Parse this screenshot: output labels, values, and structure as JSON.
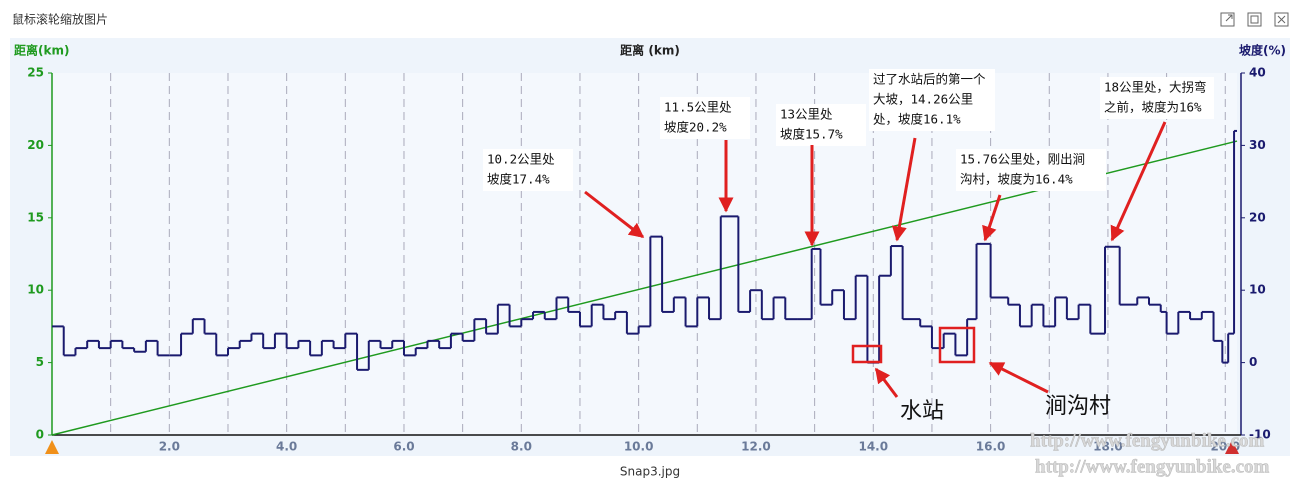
{
  "window_title": "鼠标滚轮缩放图片",
  "caption": "Snap3.jpg",
  "chart_data": {
    "type": "line",
    "xlabel": "距离 (km)",
    "ylabel": "距离(km)",
    "y2label": "坡度(%)",
    "xlim": [
      0,
      20.2
    ],
    "xticks": [
      {
        "value": 2,
        "label": "2.0"
      },
      {
        "value": 4,
        "label": "4.0"
      },
      {
        "value": 6,
        "label": "6.0"
      },
      {
        "value": 8,
        "label": "8.0"
      },
      {
        "value": 10,
        "label": "10.0"
      },
      {
        "value": 12,
        "label": "12.0"
      },
      {
        "value": 14,
        "label": "14.0"
      },
      {
        "value": 16,
        "label": "16.0"
      },
      {
        "value": 18,
        "label": "18.0"
      },
      {
        "value": 20,
        "label": "20.0"
      }
    ],
    "xminorticks": [
      1,
      3,
      5,
      7,
      9,
      11,
      13,
      15,
      17,
      19
    ],
    "ylim": [
      0,
      25
    ],
    "yticks": [
      0,
      5,
      10,
      15,
      20,
      25
    ],
    "y2lim": [
      -10,
      40
    ],
    "y2ticks": [
      -10,
      0,
      10,
      20,
      30,
      40
    ],
    "series": [
      {
        "name": "距离",
        "color": "#1f9a1f",
        "step": false,
        "x": [
          0,
          20.2
        ],
        "values": [
          0,
          20.3
        ]
      },
      {
        "name": "坡度",
        "color": "#1a1a6e",
        "axis": "y2",
        "step": true,
        "x": [
          0,
          0.2,
          0.4,
          0.6,
          0.8,
          1.0,
          1.2,
          1.4,
          1.6,
          1.8,
          2.0,
          2.2,
          2.4,
          2.6,
          2.8,
          3.0,
          3.2,
          3.4,
          3.6,
          3.8,
          4.0,
          4.2,
          4.4,
          4.6,
          4.8,
          5.0,
          5.2,
          5.4,
          5.6,
          5.8,
          6.0,
          6.2,
          6.4,
          6.6,
          6.8,
          7.0,
          7.2,
          7.4,
          7.6,
          7.8,
          8.0,
          8.2,
          8.4,
          8.6,
          8.8,
          9.0,
          9.2,
          9.4,
          9.6,
          9.8,
          10.0,
          10.2,
          10.4,
          10.6,
          10.8,
          11.0,
          11.2,
          11.4,
          11.7,
          11.9,
          12.1,
          12.3,
          12.5,
          12.7,
          12.95,
          13.1,
          13.3,
          13.5,
          13.7,
          13.9,
          14.1,
          14.3,
          14.5,
          14.8,
          15.0,
          15.2,
          15.4,
          15.6,
          15.76,
          16.0,
          16.3,
          16.5,
          16.7,
          16.9,
          17.1,
          17.3,
          17.5,
          17.7,
          17.95,
          18.2,
          18.5,
          18.7,
          18.9,
          19.0,
          19.2,
          19.4,
          19.6,
          19.8,
          19.95,
          20.05,
          20.15
        ],
        "values": [
          5,
          1,
          2,
          3,
          2,
          3,
          2,
          1.5,
          3,
          1,
          1,
          4,
          6,
          4,
          1,
          2,
          3,
          4,
          2,
          4,
          2,
          3,
          1,
          3,
          2,
          4,
          -1,
          3,
          2,
          3,
          1,
          2,
          3,
          2,
          4,
          3,
          6,
          4,
          8,
          5,
          6,
          7,
          6,
          9,
          7,
          5,
          8,
          6,
          7,
          4,
          5,
          17.4,
          7,
          9,
          5,
          9,
          6,
          20.2,
          7,
          10,
          6,
          9,
          6,
          6,
          15.7,
          8,
          10,
          6,
          12,
          0,
          12,
          16.1,
          6,
          5,
          2,
          4,
          1,
          6,
          16.4,
          9,
          8,
          5,
          8,
          5,
          9,
          6,
          8,
          4,
          16,
          8,
          9,
          8,
          7,
          4,
          7,
          6,
          7,
          3,
          0,
          4,
          32
        ]
      }
    ],
    "annotations": [
      {
        "lines": [
          "10.2公里处",
          "坡度17.4%"
        ]
      },
      {
        "lines": [
          "11.5公里处",
          "坡度20.2%"
        ]
      },
      {
        "lines": [
          "13公里处",
          "坡度15.7%"
        ]
      },
      {
        "lines": [
          "过了水站后的第一个",
          "大坡，14.26公里",
          "处，坡度16.1%"
        ]
      },
      {
        "lines": [
          "15.76公里处，刚出涧",
          "沟村，坡度为16.4%"
        ]
      },
      {
        "lines": [
          "18公里处，大拐弯",
          "之前，坡度为16%"
        ]
      }
    ],
    "callouts": [
      "水站",
      "涧沟村"
    ],
    "watermark": "http://www.fengyunbike.com"
  }
}
